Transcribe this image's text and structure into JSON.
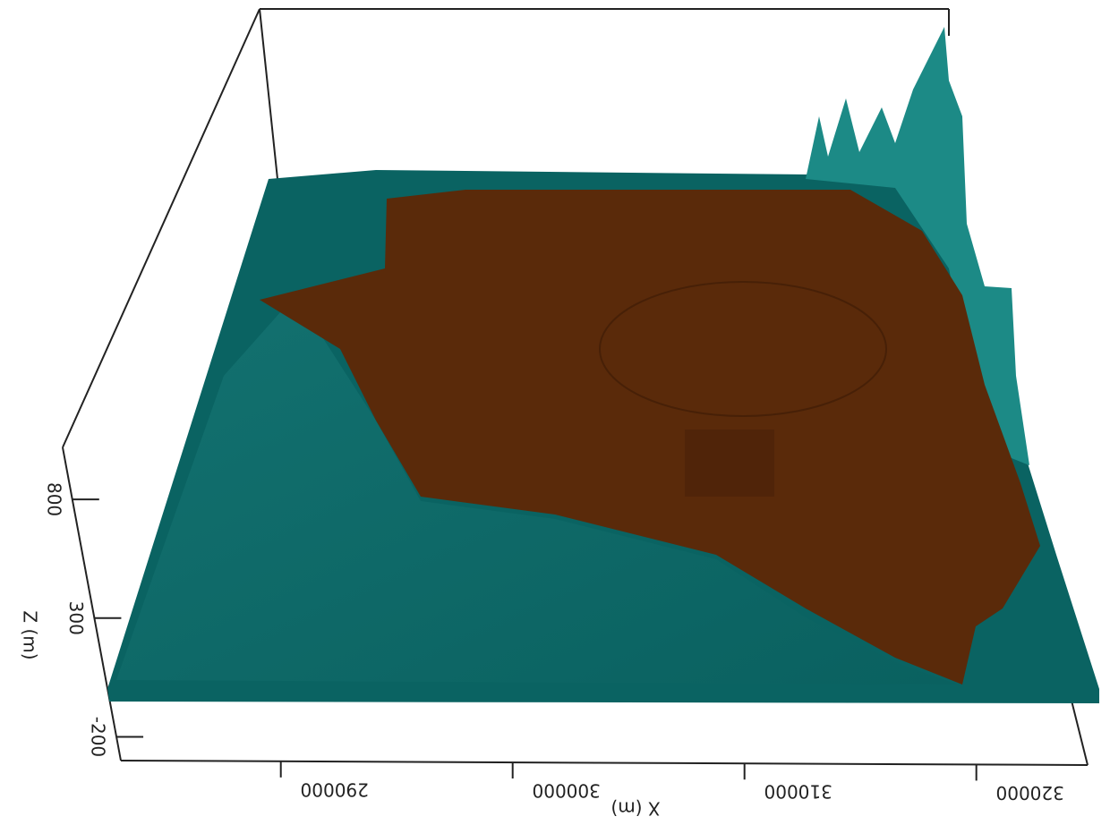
{
  "chart_data": {
    "type": "surface3d",
    "xlabel": "X (m)",
    "zlabel": "Z (m)",
    "xlim": [
      283100,
      324800
    ],
    "xticks": [
      290000,
      300000,
      310000,
      320000
    ],
    "zlim": [
      -300,
      1000
    ],
    "zticks": [
      800,
      300,
      -200
    ],
    "colors": [
      "#0a6362",
      "#5a2a0a"
    ]
  }
}
